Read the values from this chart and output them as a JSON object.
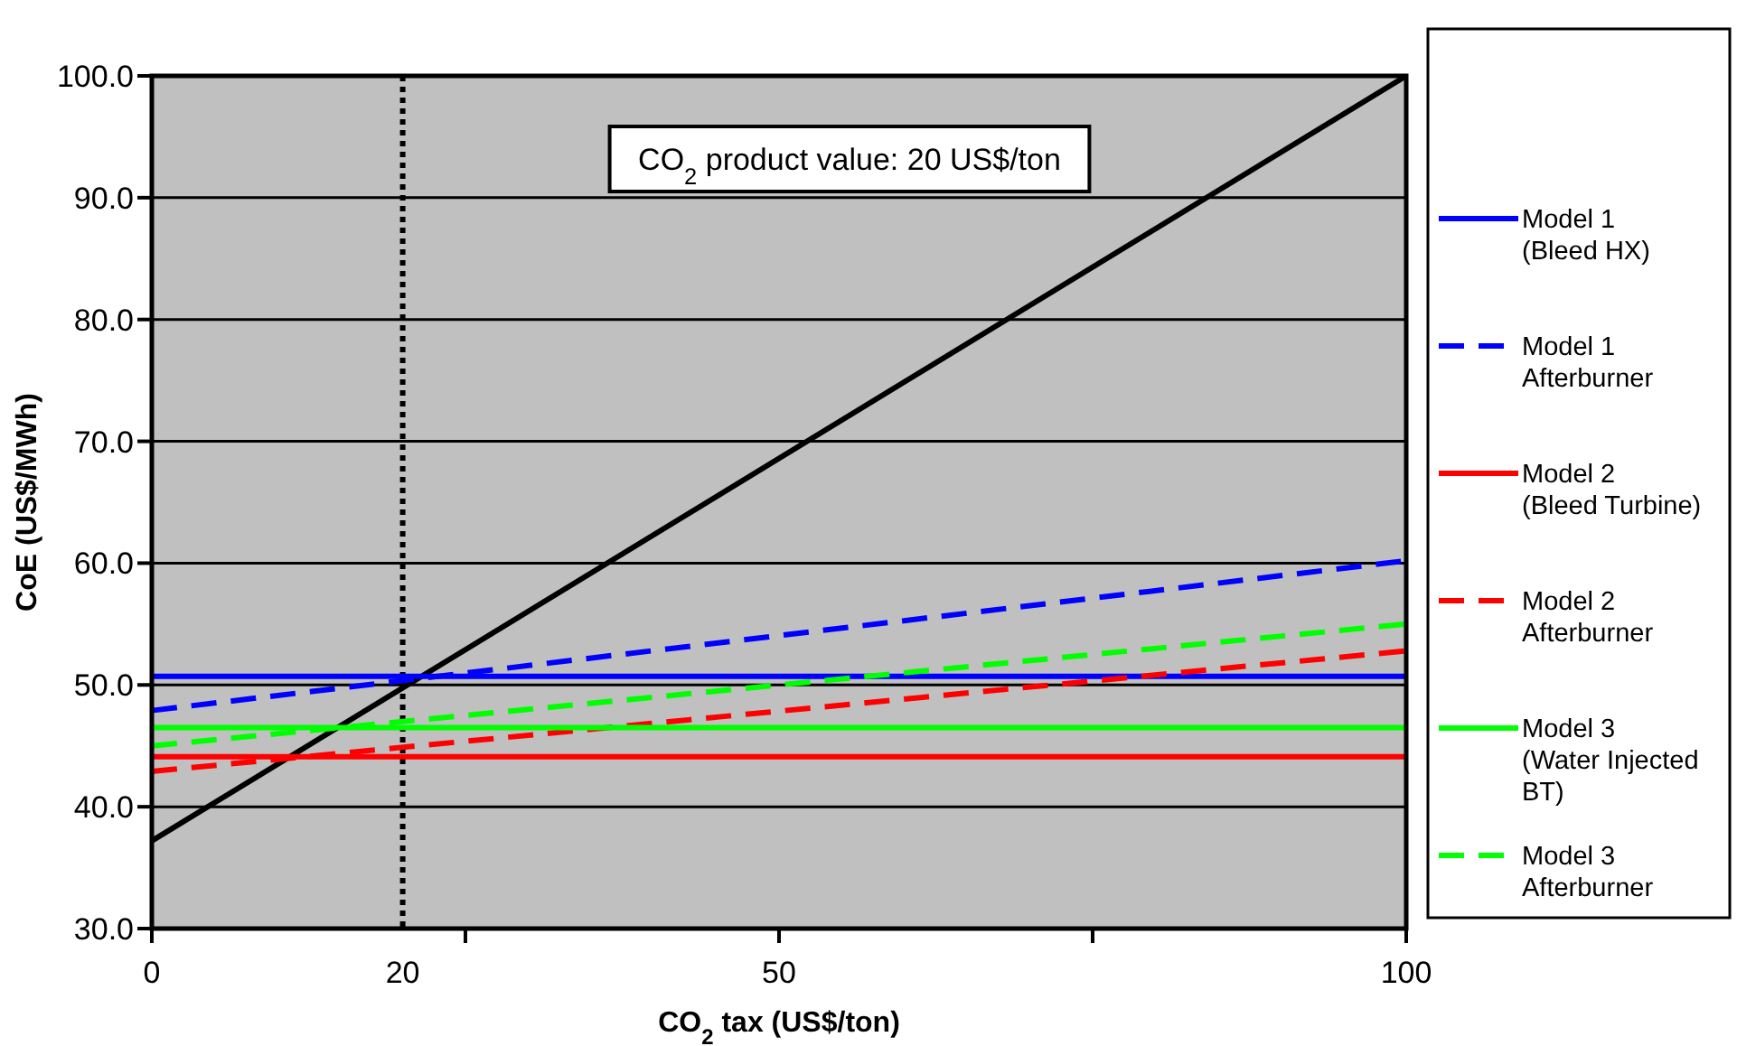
{
  "chart_data": {
    "type": "line",
    "xlabel": "CO$_{2}$ tax (US$/ton)",
    "ylabel": "CoE (US$/MWh)",
    "x": [
      0,
      100
    ],
    "xlim": [
      0,
      100
    ],
    "xticks": [
      0,
      {
        "value": 25,
        "label": null
      },
      50,
      {
        "value": 75,
        "label": null
      },
      100
    ],
    "ylim": [
      30,
      100
    ],
    "yticks": [
      {
        "value": 30,
        "label": "30.0"
      },
      {
        "value": 40,
        "label": "40.0"
      },
      {
        "value": 50,
        "label": "50.0"
      },
      {
        "value": 60,
        "label": "60.0"
      },
      {
        "value": 70,
        "label": "70.0"
      },
      {
        "value": 80,
        "label": "80.0"
      },
      {
        "value": 90,
        "label": "90.0"
      },
      {
        "value": 100,
        "label": "100.0"
      }
    ],
    "grid": "y",
    "legend": "right",
    "series": [
      {
        "color": "#000000",
        "values": [
          37.2,
          100
        ],
        "line_style": "solid"
      },
      {
        "name": "Model 1 (Bleed HX)",
        "color": "#0000ff",
        "values": [
          50.7,
          50.7
        ],
        "line_style": "solid"
      },
      {
        "name": "Model 1 Afterburner",
        "color": "#0000ff",
        "values": [
          47.9,
          60.2
        ],
        "line_style": "dashed"
      },
      {
        "name": "Model 2 (Bleed Turbine)",
        "color": "#ff0000",
        "values": [
          44.1,
          44.1
        ],
        "line_style": "solid"
      },
      {
        "name": "Model 2 Afterburner",
        "color": "#ff0000",
        "values": [
          42.9,
          52.8
        ],
        "line_style": "dashed"
      },
      {
        "name": "Model 3 (Water Injected BT)",
        "color": "#00ff00",
        "values": [
          46.5,
          46.5
        ],
        "line_style": "solid"
      },
      {
        "name": "Model 3 Afterburner",
        "color": "#00ff00",
        "values": [
          45.0,
          55.0
        ],
        "line_style": "dashed"
      }
    ],
    "ref_lines": [
      {
        "axis": "x",
        "value": 20,
        "label": "20",
        "color": "#000000",
        "line_style": "dotted"
      }
    ],
    "annotations": [
      "CO$_{2}$ product value: 20 US$/ton"
    ]
  }
}
